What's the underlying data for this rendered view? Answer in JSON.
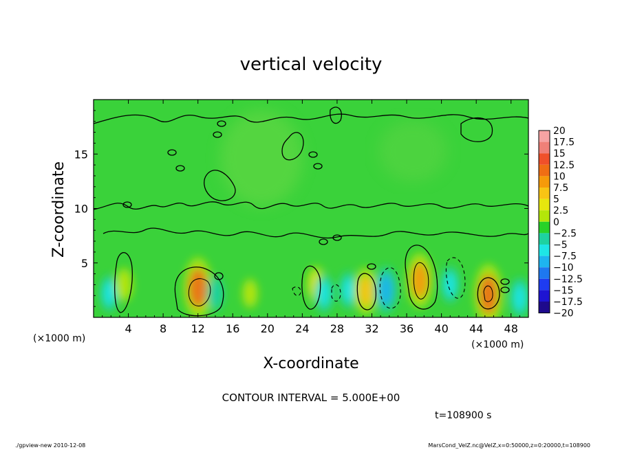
{
  "chart_data": {
    "type": "heatmap",
    "title": "vertical velocity",
    "xlabel": "X-coordinate",
    "ylabel": "Z-coordinate",
    "x_unit_left": "(×1000 m)",
    "x_unit_right": "(×1000 m)",
    "x_ticks": [
      "4",
      "8",
      "12",
      "16",
      "20",
      "24",
      "28",
      "32",
      "36",
      "40",
      "44",
      "48"
    ],
    "x_tick_values": [
      4,
      8,
      12,
      16,
      20,
      24,
      28,
      32,
      36,
      40,
      44,
      48
    ],
    "y_ticks": [
      "5",
      "10",
      "15"
    ],
    "y_tick_values": [
      5,
      10,
      15
    ],
    "xlim": [
      0,
      50
    ],
    "ylim": [
      0,
      20
    ],
    "contour_interval_text": "CONTOUR INTERVAL = 5.000E+00",
    "time_text": "t=108900 s",
    "colorbar": {
      "labels": [
        "20",
        "17.5",
        "15",
        "12.5",
        "10",
        "7.5",
        "5",
        "2.5",
        "0",
        "−2.5",
        "−5",
        "−7.5",
        "−10",
        "−12.5",
        "−15",
        "−17.5",
        "−20"
      ],
      "colors": [
        "#f6a3a3",
        "#f08078",
        "#f0502a",
        "#f06e14",
        "#f69a0a",
        "#f8c414",
        "#e6e60e",
        "#b4e60a",
        "#28d228",
        "#1ed2a0",
        "#1ee6e6",
        "#1eb4f0",
        "#1e78f0",
        "#1e3cf0",
        "#1e14d2",
        "#1e0a8c",
        "#6a14c8"
      ]
    },
    "features": [
      {
        "x": 12.0,
        "z": 2.7,
        "value": 12.0
      },
      {
        "x": 14.0,
        "z": 2.2,
        "value": -3.0
      },
      {
        "x": 18.0,
        "z": 2.2,
        "value": 1.5
      },
      {
        "x": 25.6,
        "z": 3.0,
        "value": 4.0
      },
      {
        "x": 26.5,
        "z": 2.2,
        "value": -4.5
      },
      {
        "x": 29.3,
        "z": 2.5,
        "value": -4.0
      },
      {
        "x": 31.3,
        "z": 2.4,
        "value": 7.5
      },
      {
        "x": 33.6,
        "z": 2.5,
        "value": -7.5
      },
      {
        "x": 37.5,
        "z": 3.4,
        "value": 10.0
      },
      {
        "x": 41.0,
        "z": 3.0,
        "value": -4.0
      },
      {
        "x": 45.4,
        "z": 2.1,
        "value": 12.0
      },
      {
        "x": 49.0,
        "z": 1.8,
        "value": -5.0
      },
      {
        "x": 1.8,
        "z": 2.2,
        "value": -4.0
      },
      {
        "x": 3.5,
        "z": 3.0,
        "value": 3.0
      }
    ]
  },
  "footer": {
    "left": "./gpview-new 2010-12-08",
    "right": "MarsCond_VelZ.nc@VelZ,x=0:50000,z=0:20000,t=108900"
  }
}
